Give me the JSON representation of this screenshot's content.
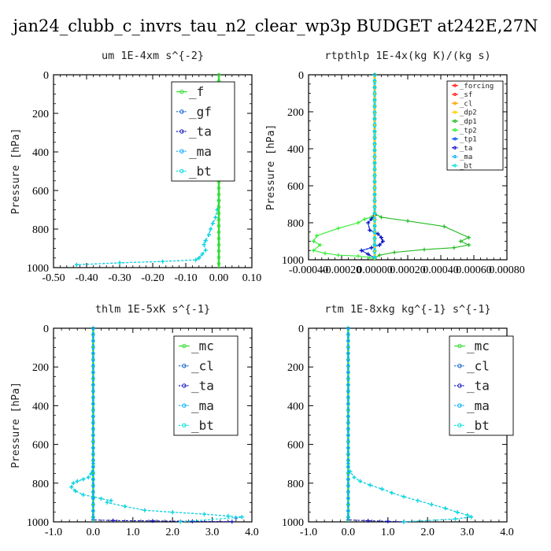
{
  "figure_title": "jan24_clubb_c_invrs_tau_n2_clear_wp3p  BUDGET at242E,27N",
  "colors": {
    "forcing": "#ff2020",
    "sf": "#ff2020",
    "cl": "#ffa000",
    "dp2": "#ffd000",
    "dp1": "#22bb22",
    "tp2": "#33ee33",
    "tp1": "#0055ff",
    "ta": "#1010c0",
    "ma": "#00aaff",
    "bt": "#00e0e0",
    "mc": "#33dd33",
    "f": "#33dd33",
    "gf": "#1060d0"
  },
  "chart_data": [
    {
      "type": "line",
      "title": "um   1E-4xm s^{-2}",
      "ylabel": "Pressure [hPa]",
      "xlim": [
        -0.5,
        0.1
      ],
      "ylim": [
        1000,
        0
      ],
      "xticks": [
        -0.5,
        -0.4,
        -0.3,
        -0.2,
        -0.1,
        0.0,
        0.1
      ],
      "xtick_labels": [
        "-0.50",
        "-0.40",
        "-0.30",
        "-0.20",
        "-0.10",
        "0.00",
        "0.10"
      ],
      "yticks": [
        0,
        200,
        400,
        600,
        800,
        1000
      ],
      "ytick_labels": [
        "0",
        "200",
        "400",
        "600",
        "800",
        "1000"
      ],
      "legend": {
        "position": "top-right",
        "font_size": 16,
        "entries": [
          "_f",
          "_gf",
          "_ta",
          "_ma",
          "_bt"
        ]
      },
      "series": [
        {
          "name": "_f",
          "color_key": "f",
          "style": "solid-dots",
          "x": [
            0,
            0
          ],
          "y": [
            0,
            1000
          ]
        },
        {
          "name": "_gf",
          "color_key": "gf",
          "style": "dashed-dots",
          "x": [
            0,
            0,
            0,
            0,
            -0.005,
            -0.01,
            -0.018,
            -0.025,
            -0.03,
            -0.04,
            -0.045,
            -0.04,
            -0.05,
            -0.06,
            -0.07,
            -0.17,
            -0.3,
            -0.43
          ],
          "y": [
            0,
            300,
            500,
            650,
            700,
            740,
            770,
            800,
            830,
            860,
            880,
            910,
            930,
            950,
            960,
            968,
            975,
            985
          ]
        },
        {
          "name": "_ta",
          "color_key": "ta",
          "style": "dashed-dots",
          "x": [],
          "y": []
        },
        {
          "name": "_ma",
          "color_key": "ma",
          "style": "dashed-dots",
          "x": [],
          "y": []
        },
        {
          "name": "_bt",
          "color_key": "bt",
          "style": "dashed-dots",
          "x": [
            0,
            0,
            0,
            0,
            -0.005,
            -0.01,
            -0.018,
            -0.025,
            -0.03,
            -0.04,
            -0.045,
            -0.04,
            -0.05,
            -0.06,
            -0.07,
            -0.17,
            -0.3,
            -0.43
          ],
          "y": [
            0,
            300,
            500,
            650,
            700,
            740,
            770,
            800,
            830,
            860,
            880,
            910,
            930,
            950,
            960,
            968,
            975,
            985
          ]
        }
      ]
    },
    {
      "type": "line",
      "title": "rtpthlp   1E-4x(kg K)/(kg s)",
      "ylabel": "Pressure [hPa]",
      "xlim": [
        -0.0004,
        0.0008
      ],
      "ylim": [
        1000,
        0
      ],
      "xticks": [
        -0.0004,
        -0.0002,
        0,
        0.0002,
        0.0004,
        0.0006,
        0.0008
      ],
      "xtick_labels": [
        "-0.00040",
        "-0.00020",
        "0.00000",
        "0.00020",
        "0.00040",
        "0.00060",
        "0.00080"
      ],
      "yticks": [
        0,
        200,
        400,
        600,
        800,
        1000
      ],
      "ytick_labels": [
        "0",
        "200",
        "400",
        "600",
        "800",
        "1000"
      ],
      "legend": {
        "position": "top-right",
        "font_size": 9,
        "entries": [
          "_forcing",
          "_sf",
          "_cl",
          "_dp2",
          "_dp1",
          "_tp2",
          "_tp1",
          "_ta",
          "_ma",
          "_bt"
        ]
      },
      "series": [
        {
          "name": "_forcing",
          "color_key": "forcing",
          "style": "solid-dots",
          "x": [
            0,
            0
          ],
          "y": [
            0,
            1000
          ]
        },
        {
          "name": "_sf",
          "color_key": "sf",
          "style": "solid-dots",
          "x": [
            0,
            0
          ],
          "y": [
            0,
            1000
          ]
        },
        {
          "name": "_cl",
          "color_key": "cl",
          "style": "solid-dots",
          "x": [
            0,
            0
          ],
          "y": [
            0,
            1000
          ]
        },
        {
          "name": "_dp2",
          "color_key": "dp2",
          "style": "solid-dots",
          "x": [
            0,
            0
          ],
          "y": [
            0,
            1000
          ]
        },
        {
          "name": "_dp1",
          "color_key": "dp1",
          "style": "solid-dots",
          "x": [
            0,
            0,
            4e-05,
            0.0002,
            0.00042,
            0.00057,
            0.00052,
            0.00057,
            0.00048,
            0.0003,
            0.00012,
            3e-05,
            0
          ],
          "y": [
            0,
            750,
            770,
            790,
            820,
            880,
            900,
            920,
            935,
            945,
            960,
            975,
            990
          ]
        },
        {
          "name": "_tp2",
          "color_key": "tp2",
          "style": "solid-dots",
          "x": [
            0,
            0,
            -2e-05,
            -6e-05,
            -0.0001,
            -0.00022,
            -0.00035,
            -0.00037,
            -0.00033,
            -0.00037,
            -0.0003,
            -0.00022,
            -0.0001,
            -3e-05,
            0
          ],
          "y": [
            0,
            750,
            770,
            780,
            800,
            830,
            870,
            900,
            920,
            950,
            965,
            975,
            980,
            988,
            995
          ]
        },
        {
          "name": "_tp1",
          "color_key": "tp1",
          "style": "solid-dots",
          "x": [
            0,
            0,
            -2e-05,
            -4e-05,
            -3e-05,
            2e-05,
            4e-05,
            5e-05,
            3e-05,
            -2e-05,
            -8e-05,
            -4e-05,
            0
          ],
          "y": [
            0,
            760,
            780,
            800,
            840,
            860,
            880,
            900,
            920,
            935,
            950,
            970,
            990
          ]
        },
        {
          "name": "_ta",
          "color_key": "ta",
          "style": "dashed-dots",
          "x": [
            0,
            0,
            -2e-05,
            -4e-05,
            -3e-05,
            2e-05,
            4e-05,
            5e-05,
            3e-05,
            -2e-05,
            -8e-05,
            -4e-05,
            0
          ],
          "y": [
            0,
            760,
            780,
            800,
            840,
            860,
            880,
            900,
            920,
            935,
            950,
            970,
            990
          ]
        },
        {
          "name": "_ma",
          "color_key": "ma",
          "style": "dashed-dots",
          "x": [
            0,
            0
          ],
          "y": [
            0,
            1000
          ]
        },
        {
          "name": "_bt",
          "color_key": "bt",
          "style": "dashed-dots",
          "x": [
            0,
            0
          ],
          "y": [
            0,
            1000
          ]
        }
      ]
    },
    {
      "type": "line",
      "title": "thlm   1E-5xK s^{-1}",
      "ylabel": "Pressure [hPa]",
      "xlim": [
        -1.0,
        4.0
      ],
      "ylim": [
        1000,
        0
      ],
      "xticks": [
        -1,
        0,
        1,
        2,
        3,
        4
      ],
      "xtick_labels": [
        "-1.0",
        "0.0",
        "1.0",
        "2.0",
        "3.0",
        "4.0"
      ],
      "yticks": [
        0,
        200,
        400,
        600,
        800,
        1000
      ],
      "ytick_labels": [
        "0",
        "200",
        "400",
        "600",
        "800",
        "1000"
      ],
      "legend": {
        "position": "top-right",
        "font_size": 16,
        "entries": [
          "_mc",
          "_cl",
          "_ta",
          "_ma",
          "_bt"
        ]
      },
      "series": [
        {
          "name": "_mc",
          "color_key": "mc",
          "style": "solid-dots",
          "x": [
            0,
            0
          ],
          "y": [
            0,
            1000
          ]
        },
        {
          "name": "_cl",
          "color_key": "gf",
          "style": "dashed-dots",
          "x": [
            0,
            0,
            -0.05,
            -0.12,
            -0.25,
            -0.4,
            -0.5,
            -0.55,
            -0.45,
            -0.25,
            0.0,
            0.2,
            0.45,
            0.35,
            0.8,
            1.3,
            2.0,
            2.8,
            3.4,
            3.75,
            3.6
          ],
          "y": [
            0,
            700,
            750,
            770,
            780,
            790,
            800,
            820,
            840,
            860,
            870,
            880,
            890,
            900,
            920,
            940,
            950,
            960,
            970,
            975,
            980
          ]
        },
        {
          "name": "_ta",
          "color_key": "ta",
          "style": "dashed-dots",
          "x": [
            0,
            0,
            0.5,
            1.5,
            2.5,
            3.5
          ],
          "y": [
            0,
            990,
            993,
            995,
            997,
            999
          ]
        },
        {
          "name": "_ma",
          "color_key": "ma",
          "style": "dashed-dots",
          "x": [
            0,
            0
          ],
          "y": [
            0,
            1000
          ]
        },
        {
          "name": "_bt",
          "color_key": "bt",
          "style": "dashed-dots",
          "x": [
            0,
            0,
            -0.05,
            -0.12,
            -0.25,
            -0.4,
            -0.5,
            -0.55,
            -0.45,
            -0.25,
            0.0,
            0.2,
            0.45,
            0.35,
            0.8,
            1.3,
            2.0,
            2.8,
            3.4,
            3.75,
            2.2
          ],
          "y": [
            0,
            700,
            750,
            770,
            780,
            790,
            800,
            820,
            840,
            860,
            870,
            880,
            890,
            900,
            920,
            940,
            950,
            960,
            970,
            975,
            1000
          ]
        }
      ]
    },
    {
      "type": "line",
      "title": "rtm   1E-8xkg kg^{-1} s^{-1}",
      "ylabel": "",
      "xlim": [
        -1.0,
        4.0
      ],
      "ylim": [
        1000,
        0
      ],
      "xticks": [
        -1,
        0,
        1,
        2,
        3,
        4
      ],
      "xtick_labels": [
        "-1.0",
        "0.0",
        "1.0",
        "2.0",
        "3.0",
        "4.0"
      ],
      "yticks": [
        0,
        200,
        400,
        600,
        800,
        1000
      ],
      "ytick_labels": [
        "0",
        "200",
        "400",
        "600",
        "800",
        "1000"
      ],
      "legend": {
        "position": "top-right",
        "font_size": 16,
        "entries": [
          "_mc",
          "_cl",
          "_ta",
          "_ma",
          "_bt"
        ]
      },
      "series": [
        {
          "name": "_mc",
          "color_key": "mc",
          "style": "solid-dots",
          "x": [
            0,
            0
          ],
          "y": [
            0,
            1000
          ]
        },
        {
          "name": "_cl",
          "color_key": "gf",
          "style": "dashed-dots",
          "x": [
            0,
            0,
            0.05,
            0.15,
            0.3,
            0.55,
            0.85,
            1.1,
            1.4,
            1.75,
            2.1,
            2.45,
            2.75,
            3.0,
            3.1,
            2.7,
            1.4
          ],
          "y": [
            0,
            700,
            740,
            770,
            790,
            810,
            830,
            850,
            870,
            890,
            910,
            930,
            950,
            965,
            975,
            985,
            1000
          ]
        },
        {
          "name": "_ta",
          "color_key": "ta",
          "style": "dashed-dots",
          "x": [
            0,
            0,
            0.5,
            1.0,
            1.4
          ],
          "y": [
            0,
            990,
            994,
            997,
            1000
          ]
        },
        {
          "name": "_ma",
          "color_key": "ma",
          "style": "dashed-dots",
          "x": [
            0,
            0
          ],
          "y": [
            0,
            1000
          ]
        },
        {
          "name": "_bt",
          "color_key": "bt",
          "style": "dashed-dots",
          "x": [
            0,
            0,
            0.05,
            0.15,
            0.3,
            0.55,
            0.85,
            1.1,
            1.4,
            1.75,
            2.1,
            2.45,
            2.75,
            3.0,
            3.1,
            2.7,
            1.4
          ],
          "y": [
            0,
            700,
            740,
            770,
            790,
            810,
            830,
            850,
            870,
            890,
            910,
            930,
            950,
            965,
            975,
            985,
            1000
          ]
        }
      ]
    }
  ]
}
